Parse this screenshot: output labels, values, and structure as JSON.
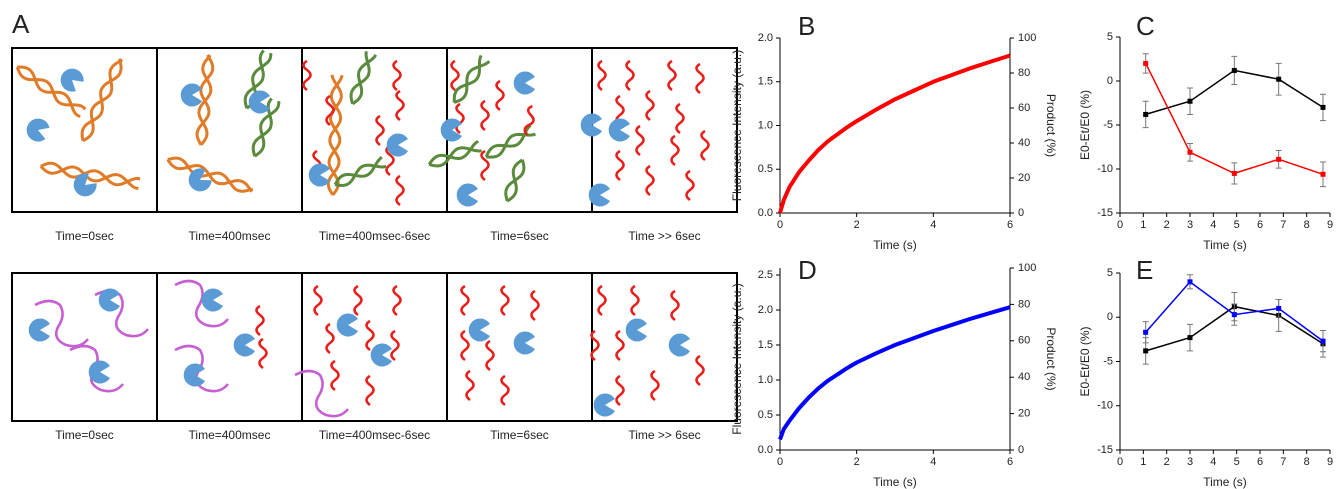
{
  "panel_a": {
    "label": "A",
    "rows": [
      {
        "captions": [
          "Time=0sec",
          "Time=400msec",
          "Time=400msec-6sec",
          "Time=6sec",
          "Time >> 6sec"
        ]
      },
      {
        "captions": [
          "Time=0sec",
          "Time=400msec",
          "Time=400msec-6sec",
          "Time=6sec",
          "Time >> 6sec"
        ]
      }
    ]
  },
  "chart_data": [
    {
      "type": "line",
      "label": "B",
      "xlabel": "Time (s)",
      "ylabel": "Fluorescence Intensity (a.u.)",
      "y2label": "Product  (%)",
      "x": [
        0,
        0.1,
        0.25,
        0.5,
        0.75,
        1,
        1.25,
        1.5,
        1.75,
        2,
        2.5,
        3,
        3.5,
        4,
        4.5,
        5,
        5.5,
        6
      ],
      "series": [
        {
          "color": "#ff0000",
          "values": [
            0,
            0.15,
            0.3,
            0.47,
            0.6,
            0.72,
            0.82,
            0.9,
            0.98,
            1.05,
            1.18,
            1.3,
            1.4,
            1.5,
            1.58,
            1.66,
            1.73,
            1.8
          ]
        }
      ],
      "xlim": [
        0,
        6
      ],
      "xticks": [
        0,
        2,
        4,
        6
      ],
      "ylim": [
        0,
        2.0
      ],
      "yticks": [
        {
          "value": 0,
          "label": "0.0"
        },
        {
          "value": 0.5,
          "label": "0.5"
        },
        {
          "value": 1.0,
          "label": "1.0"
        },
        {
          "value": 1.5,
          "label": "1.5"
        },
        {
          "value": 2.0,
          "label": "2.0"
        }
      ],
      "y2lim": [
        0,
        100
      ],
      "y2ticks": [
        0,
        20,
        40,
        60,
        80,
        100
      ]
    },
    {
      "type": "errorline",
      "label": "C",
      "xlabel": "Time (s)",
      "ylabel": "E0-Et/E0 (%)",
      "x": [
        1.1,
        3,
        4.9,
        6.8,
        8.7
      ],
      "series": [
        {
          "color": "#000000",
          "values": [
            -3.8,
            -2.3,
            1.2,
            0.2,
            -3.0
          ],
          "errors": [
            1.5,
            1.5,
            1.6,
            1.8,
            1.5
          ]
        },
        {
          "color": "#ff0000",
          "values": [
            2.0,
            -8.1,
            -10.5,
            -8.9,
            -10.6
          ],
          "errors": [
            1.1,
            1.0,
            1.2,
            1.0,
            1.4
          ]
        }
      ],
      "xlim": [
        0,
        9
      ],
      "xticks": [
        0,
        1,
        2,
        3,
        4,
        5,
        6,
        7,
        8,
        9
      ],
      "ylim": [
        -15,
        5
      ],
      "yticks": [
        -15,
        -10,
        -5,
        0,
        5
      ]
    },
    {
      "type": "line",
      "label": "D",
      "xlabel": "Time (s)",
      "ylabel": "Fluorescence Intensity (a.u.)",
      "y2label": "Product  (%)",
      "x": [
        0,
        0.1,
        0.25,
        0.5,
        0.75,
        1,
        1.25,
        1.5,
        1.75,
        2,
        2.5,
        3,
        3.5,
        4,
        4.5,
        5,
        5.5,
        6
      ],
      "series": [
        {
          "color": "#0000ff",
          "values": [
            0.15,
            0.3,
            0.42,
            0.6,
            0.75,
            0.88,
            0.99,
            1.08,
            1.17,
            1.25,
            1.38,
            1.5,
            1.6,
            1.7,
            1.79,
            1.88,
            1.96,
            2.04
          ]
        }
      ],
      "xlim": [
        0,
        6
      ],
      "xticks": [
        0,
        2,
        4,
        6
      ],
      "ylim": [
        0,
        2.6
      ],
      "yticks": [
        {
          "value": 0,
          "label": "0.0"
        },
        {
          "value": 0.5,
          "label": "0.5"
        },
        {
          "value": 1.0,
          "label": "1.0"
        },
        {
          "value": 1.5,
          "label": "1.5"
        },
        {
          "value": 2.0,
          "label": "2.0"
        },
        {
          "value": 2.5,
          "label": "2.5"
        }
      ],
      "y2lim": [
        0,
        100
      ],
      "y2ticks": [
        0,
        20,
        40,
        60,
        80,
        100
      ]
    },
    {
      "type": "errorline",
      "label": "E",
      "xlabel": "Time (s)",
      "ylabel": "E0-Et/E0 (%)",
      "x": [
        1.1,
        3,
        4.9,
        6.8,
        8.7
      ],
      "series": [
        {
          "color": "#000000",
          "values": [
            -3.8,
            -2.3,
            1.2,
            0.2,
            -3.0
          ],
          "errors": [
            1.5,
            1.5,
            1.6,
            1.8,
            1.5
          ]
        },
        {
          "color": "#0000ff",
          "values": [
            -1.7,
            4.0,
            0.3,
            1.0,
            -2.7
          ],
          "errors": [
            1.2,
            0.8,
            1.2,
            1.0,
            1.2
          ]
        }
      ],
      "xlim": [
        0,
        9
      ],
      "xticks": [
        0,
        1,
        2,
        3,
        4,
        5,
        6,
        7,
        8,
        9
      ],
      "ylim": [
        -15,
        5
      ],
      "yticks": [
        -15,
        -10,
        -5,
        0,
        5
      ]
    }
  ]
}
